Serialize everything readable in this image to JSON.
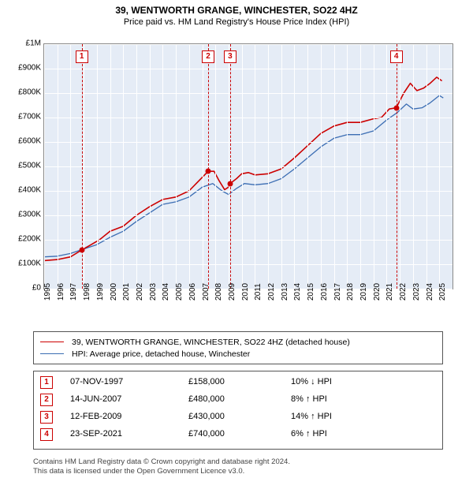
{
  "title": "39, WENTWORTH GRANGE, WINCHESTER, SO22 4HZ",
  "subtitle": "Price paid vs. HM Land Registry's House Price Index (HPI)",
  "chart": {
    "type": "line",
    "background_color": "#e5ecf6",
    "grid_color": "#ffffff",
    "x_range": [
      1995,
      2026
    ],
    "y_range": [
      0,
      1000000
    ],
    "y_ticks": [
      {
        "v": 0,
        "label": "£0"
      },
      {
        "v": 100000,
        "label": "£100K"
      },
      {
        "v": 200000,
        "label": "£200K"
      },
      {
        "v": 300000,
        "label": "£300K"
      },
      {
        "v": 400000,
        "label": "£400K"
      },
      {
        "v": 500000,
        "label": "£500K"
      },
      {
        "v": 600000,
        "label": "£600K"
      },
      {
        "v": 700000,
        "label": "£700K"
      },
      {
        "v": 800000,
        "label": "£800K"
      },
      {
        "v": 900000,
        "label": "£900K"
      },
      {
        "v": 1000000,
        "label": "£1M"
      }
    ],
    "x_ticks": [
      1995,
      1996,
      1997,
      1998,
      1999,
      2000,
      2001,
      2002,
      2003,
      2004,
      2005,
      2006,
      2007,
      2008,
      2009,
      2010,
      2011,
      2012,
      2013,
      2014,
      2015,
      2016,
      2017,
      2018,
      2019,
      2020,
      2021,
      2022,
      2023,
      2024,
      2025
    ],
    "title_fontsize": 12,
    "label_fontsize": 10,
    "line_width_subject": 1.6,
    "line_width_hpi": 1.3,
    "subject_color": "#cc0000",
    "hpi_color": "#3b6db3",
    "marker_dash_color": "#cc0000",
    "sale_point_color": "#cc0000",
    "subject_series": [
      [
        1995.0,
        115000
      ],
      [
        1996.0,
        119000
      ],
      [
        1997.0,
        130000
      ],
      [
        1997.85,
        158000
      ],
      [
        1998.5,
        178000
      ],
      [
        1999.2,
        200000
      ],
      [
        2000.0,
        235000
      ],
      [
        2001.0,
        255000
      ],
      [
        2002.0,
        300000
      ],
      [
        2003.0,
        335000
      ],
      [
        2004.0,
        365000
      ],
      [
        2005.0,
        375000
      ],
      [
        2006.0,
        400000
      ],
      [
        2007.0,
        455000
      ],
      [
        2007.45,
        480000
      ],
      [
        2007.9,
        480000
      ],
      [
        2008.3,
        440000
      ],
      [
        2008.7,
        405000
      ],
      [
        2009.0,
        415000
      ],
      [
        2009.12,
        430000
      ],
      [
        2009.6,
        450000
      ],
      [
        2010.0,
        470000
      ],
      [
        2010.5,
        475000
      ],
      [
        2011.0,
        465000
      ],
      [
        2012.0,
        470000
      ],
      [
        2013.0,
        490000
      ],
      [
        2014.0,
        535000
      ],
      [
        2015.0,
        585000
      ],
      [
        2016.0,
        635000
      ],
      [
        2017.0,
        665000
      ],
      [
        2018.0,
        680000
      ],
      [
        2019.0,
        680000
      ],
      [
        2020.0,
        695000
      ],
      [
        2020.6,
        700000
      ],
      [
        2021.2,
        735000
      ],
      [
        2021.73,
        740000
      ],
      [
        2022.3,
        800000
      ],
      [
        2022.8,
        840000
      ],
      [
        2023.3,
        810000
      ],
      [
        2023.8,
        820000
      ],
      [
        2024.3,
        840000
      ],
      [
        2024.8,
        865000
      ],
      [
        2025.2,
        850000
      ]
    ],
    "hpi_series": [
      [
        1995.0,
        130000
      ],
      [
        1996.0,
        133000
      ],
      [
        1997.0,
        144000
      ],
      [
        1998.0,
        162000
      ],
      [
        1999.0,
        180000
      ],
      [
        2000.0,
        210000
      ],
      [
        2001.0,
        235000
      ],
      [
        2002.0,
        275000
      ],
      [
        2003.0,
        310000
      ],
      [
        2004.0,
        345000
      ],
      [
        2005.0,
        355000
      ],
      [
        2006.0,
        375000
      ],
      [
        2007.0,
        415000
      ],
      [
        2007.8,
        430000
      ],
      [
        2008.5,
        400000
      ],
      [
        2009.0,
        385000
      ],
      [
        2009.6,
        410000
      ],
      [
        2010.2,
        430000
      ],
      [
        2011.0,
        425000
      ],
      [
        2012.0,
        430000
      ],
      [
        2013.0,
        450000
      ],
      [
        2014.0,
        490000
      ],
      [
        2015.0,
        535000
      ],
      [
        2016.0,
        580000
      ],
      [
        2017.0,
        615000
      ],
      [
        2018.0,
        630000
      ],
      [
        2019.0,
        630000
      ],
      [
        2020.0,
        645000
      ],
      [
        2021.0,
        690000
      ],
      [
        2021.8,
        720000
      ],
      [
        2022.5,
        755000
      ],
      [
        2023.0,
        735000
      ],
      [
        2023.7,
        740000
      ],
      [
        2024.3,
        760000
      ],
      [
        2025.0,
        790000
      ],
      [
        2025.3,
        780000
      ]
    ],
    "sale_points": [
      {
        "x": 1997.85,
        "y": 158000
      },
      {
        "x": 2007.45,
        "y": 480000
      },
      {
        "x": 2009.12,
        "y": 430000
      },
      {
        "x": 2021.73,
        "y": 740000
      }
    ],
    "marker_lines": [
      1997.85,
      2007.45,
      2009.12,
      2021.73
    ]
  },
  "legend": {
    "items": [
      {
        "color": "#cc0000",
        "label": "39, WENTWORTH GRANGE, WINCHESTER, SO22 4HZ (detached house)"
      },
      {
        "color": "#3b6db3",
        "label": "HPI: Average price, detached house, Winchester"
      }
    ]
  },
  "sales": [
    {
      "n": "1",
      "date": "07-NOV-1997",
      "price": "£158,000",
      "diff": "10% ↓ HPI"
    },
    {
      "n": "2",
      "date": "14-JUN-2007",
      "price": "£480,000",
      "diff": "8% ↑ HPI"
    },
    {
      "n": "3",
      "date": "12-FEB-2009",
      "price": "£430,000",
      "diff": "14% ↑ HPI"
    },
    {
      "n": "4",
      "date": "23-SEP-2021",
      "price": "£740,000",
      "diff": "6% ↑ HPI"
    }
  ],
  "attribution": {
    "line1": "Contains HM Land Registry data © Crown copyright and database right 2024.",
    "line2": "This data is licensed under the Open Government Licence v3.0."
  }
}
